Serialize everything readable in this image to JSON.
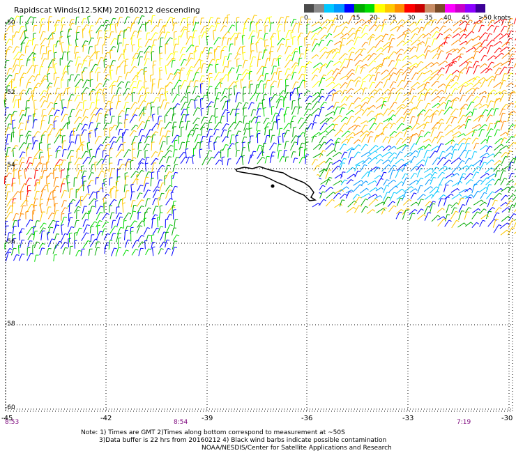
{
  "title": "Rapidscat Winds(12.5KM) 20160212 descending",
  "legend": {
    "colors": [
      "#4b4b4b",
      "#8a8a8a",
      "#00c8ff",
      "#0096ff",
      "#0000ff",
      "#00aa00",
      "#00dd00",
      "#ffff00",
      "#ffc800",
      "#ff8c00",
      "#ff0000",
      "#c80000",
      "#c88c64",
      "#7a4b28",
      "#ff00ff",
      "#c800c8",
      "#8c00ff",
      "#3c0096"
    ],
    "labels": [
      "0",
      "5",
      "10",
      "15",
      "20",
      "25",
      "30",
      "35",
      "40",
      "45",
      ">50 knots"
    ]
  },
  "axes": {
    "lat_labels": [
      "-50",
      "-52",
      "-54",
      "-56",
      "-58",
      "-60"
    ],
    "lon_labels": [
      "-45",
      "-42",
      "-39",
      "-36",
      "-33",
      "-30"
    ],
    "time_labels": [
      "8:53",
      "8:54",
      "7:19"
    ]
  },
  "notes": {
    "line1": "Note: 1) Times are GMT 2)Times along bottom correspond to measurement at ~50S",
    "line2": "3)Data buffer is 22 hrs from 20160212 4) Black wind barbs indicate possible contamination",
    "line3": "NOAA/NESDIS/Center for Satellite Applications and Research"
  }
}
